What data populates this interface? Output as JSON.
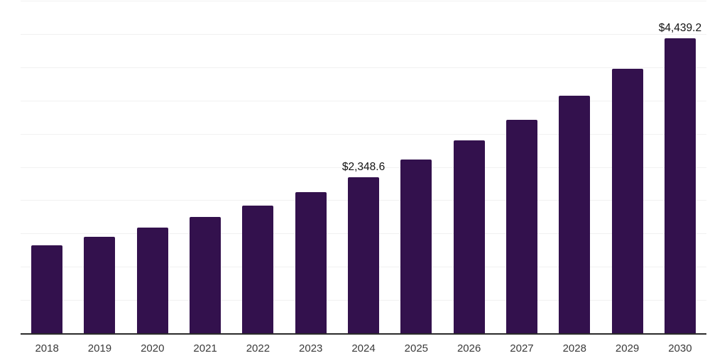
{
  "chart_data": {
    "type": "bar",
    "title": "",
    "categories": [
      "2018",
      "2019",
      "2020",
      "2021",
      "2022",
      "2023",
      "2024",
      "2025",
      "2026",
      "2027",
      "2028",
      "2029",
      "2030"
    ],
    "values": [
      1317,
      1450,
      1587,
      1750,
      1923,
      2125,
      2348.6,
      2609,
      2898,
      3213,
      3576,
      3978,
      4439.2
    ],
    "data_labels": [
      "",
      "",
      "",
      "",
      "",
      "",
      "$2,348.6",
      "",
      "",
      "",
      "",
      "",
      "$4,439.2"
    ],
    "xlabel": "",
    "ylabel": "",
    "ylim": [
      0,
      5000
    ],
    "gridline_step": 500,
    "grid": "horizontal-only",
    "legend": "none",
    "y_tick_labels_visible": false,
    "colors": {
      "bar": "#33114d",
      "axis_line": "#2b2b2b",
      "gridline": "#f1f1f1",
      "data_label": "#111111",
      "tick_label": "#3a3a3a",
      "background": "#ffffff"
    }
  }
}
